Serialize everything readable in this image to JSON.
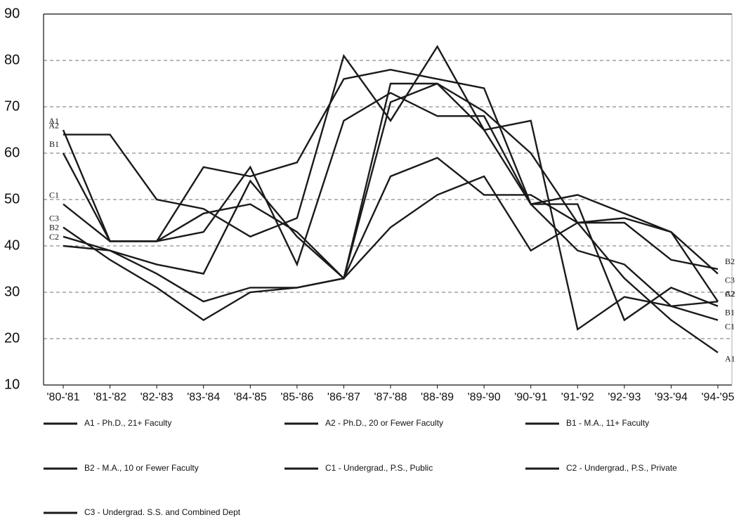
{
  "chart_data": {
    "type": "line",
    "categories": [
      "'80-'81",
      "'81-'82",
      "'82-'83",
      "'83-'84",
      "'84-'85",
      "'85-'86",
      "'86-'87",
      "'87-'88",
      "'88-'89",
      "'89-'90",
      "'90-'91",
      "'91-'92",
      "'92-'93",
      "'93-'94",
      "'94-'95"
    ],
    "series": [
      {
        "name": "A1 - Ph.D., 21+ Faculty",
        "label": "A1",
        "color": "#1a1a1a",
        "values": [
          65,
          41,
          41,
          47,
          49,
          43,
          33,
          44,
          51,
          55,
          39,
          45,
          33,
          24,
          17
        ]
      },
      {
        "name": "A2 - Ph.D., 20 or Fewer Faculty",
        "label": "A2",
        "color": "#1a1a1a",
        "values": [
          64,
          64,
          50,
          48,
          42,
          46,
          81,
          67,
          83,
          65,
          67,
          22,
          29,
          27,
          28
        ]
      },
      {
        "name": "B1 - M.A., 11+ Faculty",
        "label": "B1",
        "color": "#1a1a1a",
        "values": [
          60,
          41,
          41,
          43,
          57,
          36,
          67,
          73,
          68,
          68,
          49,
          49,
          24,
          31,
          27
        ]
      },
      {
        "name": "B2 - M.A., 10 or Fewer Faculty",
        "label": "B2",
        "color": "#1a1a1a",
        "values": [
          42,
          39,
          36,
          34,
          54,
          42,
          33,
          55,
          59,
          51,
          51,
          45,
          45,
          37,
          35
        ]
      },
      {
        "name": "C1 - Undergrad., P.S., Public",
        "label": "C1",
        "color": "#1a1a1a",
        "values": [
          49,
          41,
          41,
          57,
          55,
          58,
          76,
          78,
          76,
          74,
          49,
          39,
          36,
          27,
          24
        ]
      },
      {
        "name": "C2 - Undergrad., P.S., Private",
        "label": "C2",
        "color": "#1a1a1a",
        "values": [
          40,
          39,
          34,
          28,
          31,
          31,
          33,
          75,
          75,
          65,
          49,
          51,
          47,
          43,
          28
        ]
      },
      {
        "name": "C3 - Undergrad. S.S. and Combined Dept",
        "label": "C3",
        "color": "#1a1a1a",
        "values": [
          44,
          37,
          31,
          24,
          30,
          31,
          33,
          71,
          75,
          69,
          60,
          45,
          46,
          43,
          34
        ]
      }
    ],
    "ylim": [
      10,
      90
    ],
    "yticks": [
      10,
      20,
      30,
      40,
      50,
      60,
      70,
      80,
      90
    ],
    "grid": true
  }
}
